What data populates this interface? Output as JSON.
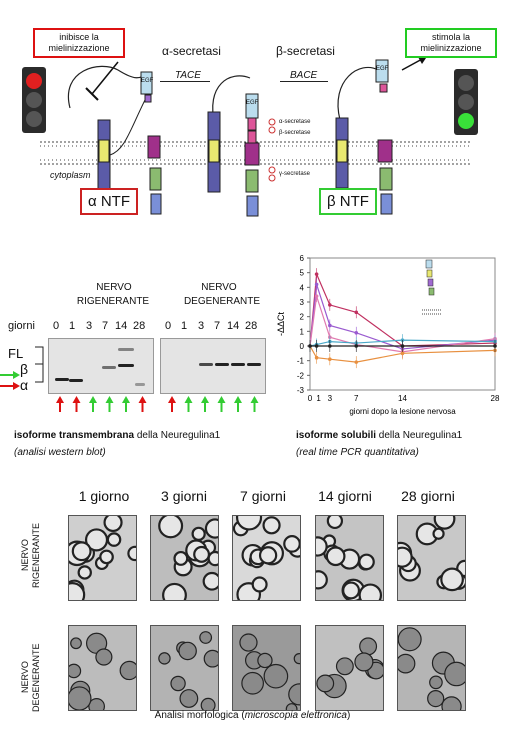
{
  "diagram": {
    "box_inhibit": "inibisce la mielinizzazione",
    "box_stimulate": "stimola la mielinizzazione",
    "alpha_secretase": "α-secretasi",
    "beta_secretase": "β-secretasi",
    "tace": "TACE",
    "bace": "BACE",
    "cytoplasm": "cytoplasm",
    "alpha_ntf": "α NTF",
    "beta_ntf": "β NTF",
    "egf": "EGF",
    "alpha_secretase_small": "α-secretase",
    "beta_secretase_small": "β-secretase",
    "gamma_secretase_small": "γ-secretase"
  },
  "western": {
    "col_regen_1": "NERVO",
    "col_regen_2": "RIGENERANTE",
    "col_degen_1": "NERVO",
    "col_degen_2": "DEGENERANTE",
    "days_label": "giorni",
    "days_regen": [
      "0",
      "1",
      "3",
      "7",
      "14",
      "28"
    ],
    "days_degen": [
      "0",
      "1",
      "3",
      "7",
      "14",
      "28"
    ],
    "fl": "FL",
    "beta": "β",
    "alpha": "α",
    "caption_bold": "isoforme transmembrana",
    "caption_rest": " della Neuregulina1",
    "caption_sub": "(analisi western blot)",
    "arrows_regen": [
      "red",
      "red",
      "green",
      "green",
      "green",
      "red"
    ],
    "arrows_degen": [
      "red",
      "green",
      "green",
      "green",
      "green",
      "green"
    ],
    "side_arrow_green": "#3c3",
    "side_arrow_red": "#d11"
  },
  "chart_data": {
    "type": "line",
    "ylabel": "-ΔΔCt",
    "xlabel": "giorni dopo la lesione nervosa",
    "x": [
      0,
      1,
      3,
      7,
      14,
      28
    ],
    "xticks": [
      "0",
      "1",
      "3",
      "7",
      "14",
      "28"
    ],
    "ylim": [
      -3,
      6
    ],
    "yticks": [
      6,
      5,
      4,
      3,
      2,
      1,
      0,
      -1,
      -2,
      -3
    ],
    "series": [
      {
        "color": "#c03060",
        "values": [
          0,
          4.9,
          2.8,
          2.3,
          0,
          0.2
        ]
      },
      {
        "color": "#9a5bd0",
        "values": [
          0,
          4.2,
          1.4,
          0.9,
          -0.2,
          0.4
        ]
      },
      {
        "color": "#e07ab0",
        "values": [
          0,
          3.4,
          0.6,
          0.1,
          -0.4,
          0.5
        ]
      },
      {
        "color": "#e89040",
        "values": [
          0,
          -0.8,
          -0.9,
          -1.1,
          -0.5,
          -0.3
        ]
      },
      {
        "color": "#4aa8c8",
        "values": [
          0,
          0.1,
          0.3,
          0.2,
          0.4,
          0.3
        ]
      },
      {
        "color": "#222222",
        "values": [
          0,
          0,
          0,
          0,
          0,
          0
        ]
      }
    ],
    "caption_bold": "isoforme solubili",
    "caption_rest": " della Neuregulina1",
    "caption_sub": "(real time PCR quantitativa)"
  },
  "morph": {
    "days": [
      "1 giorno",
      "3 giorni",
      "7 giorni",
      "14 giorni",
      "28 giorni"
    ],
    "row_regen_1": "NERVO",
    "row_regen_2": "RIGENERANTE",
    "row_degen_1": "NERVO",
    "row_degen_2": "DEGENERANTE",
    "caption_main": "Analisi morfologica (",
    "caption_italic": "microscopia elettronica",
    "caption_end": ")"
  }
}
